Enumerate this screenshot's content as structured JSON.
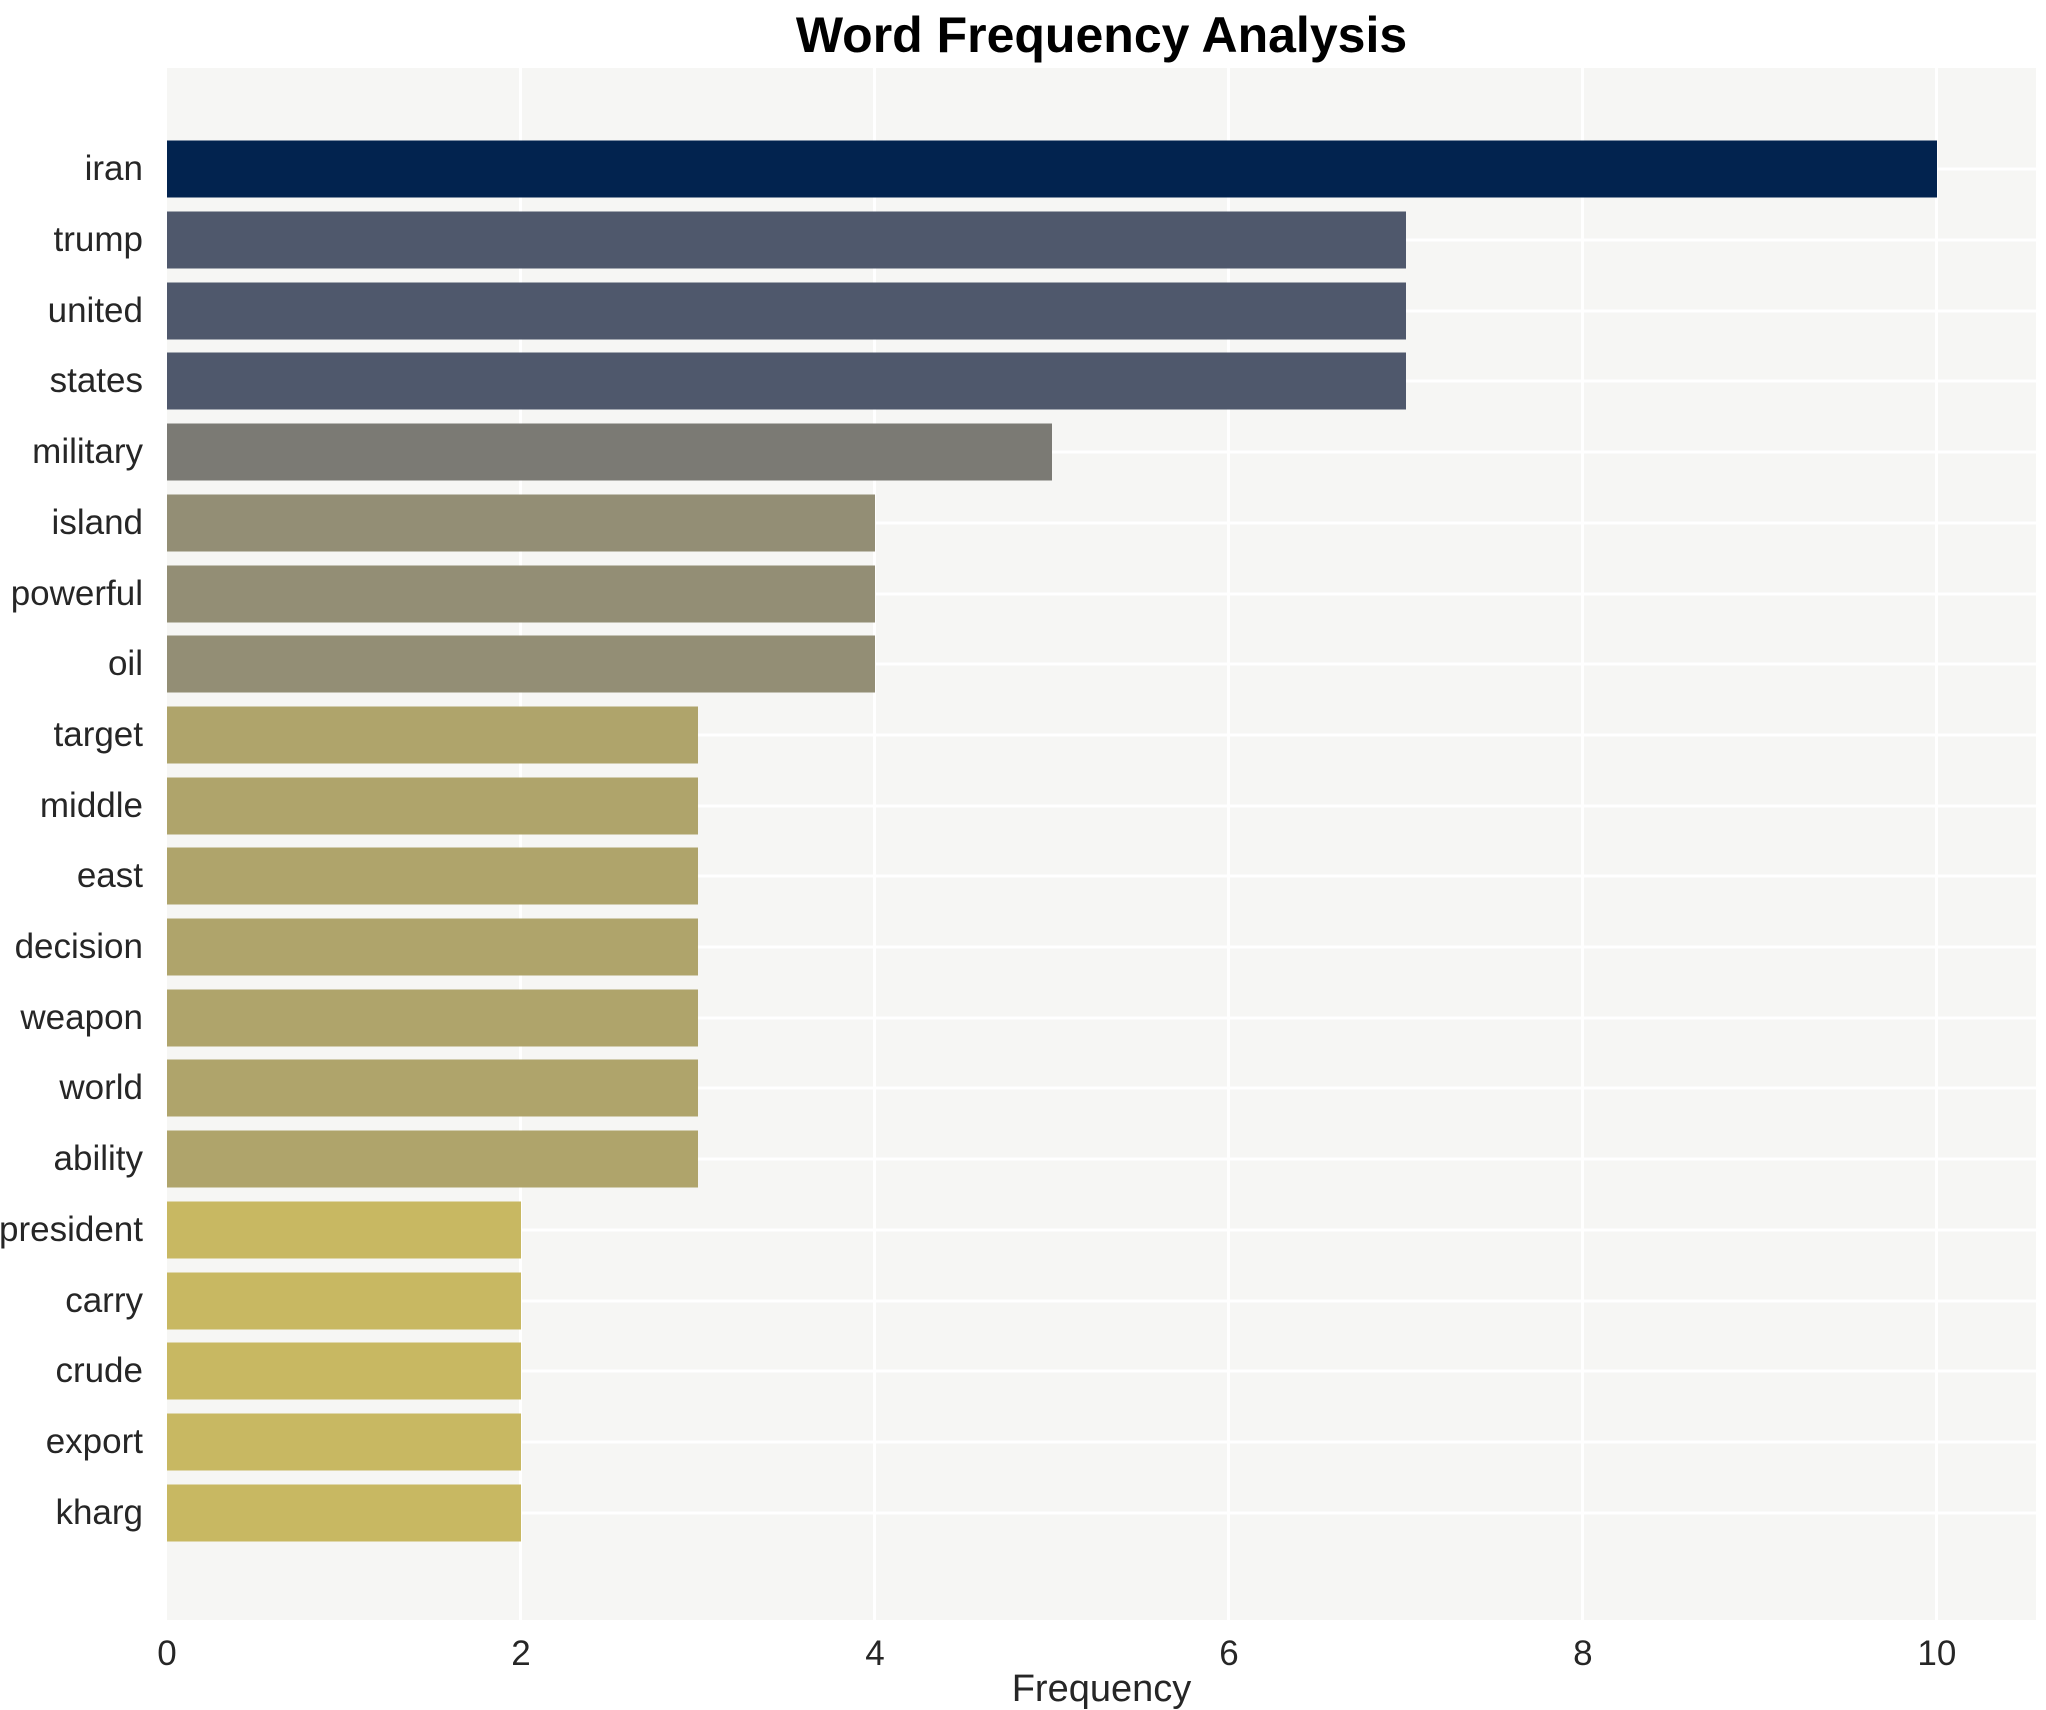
{
  "chart_data": {
    "type": "bar",
    "orientation": "horizontal",
    "title": "Word Frequency Analysis",
    "xlabel": "Frequency",
    "ylabel": "",
    "categories": [
      "iran",
      "trump",
      "united",
      "states",
      "military",
      "island",
      "powerful",
      "oil",
      "target",
      "middle",
      "east",
      "decision",
      "weapon",
      "world",
      "ability",
      "president",
      "carry",
      "crude",
      "export",
      "kharg"
    ],
    "values": [
      10,
      7,
      7,
      7,
      5,
      4,
      4,
      4,
      3,
      3,
      3,
      3,
      3,
      3,
      3,
      2,
      2,
      2,
      2,
      2
    ],
    "bar_colors": [
      "#02234f",
      "#4f586c",
      "#4f586c",
      "#4f586c",
      "#7b7a74",
      "#938e75",
      "#938e75",
      "#938e75",
      "#afa46b",
      "#afa46b",
      "#afa46b",
      "#afa46b",
      "#afa46b",
      "#afa46b",
      "#afa46b",
      "#c8b862",
      "#c8b862",
      "#c8b862",
      "#c8b862",
      "#c8b862"
    ],
    "xticks": [
      0,
      2,
      4,
      6,
      8,
      10
    ],
    "xlim": [
      0,
      10.56
    ],
    "grid": true,
    "legend": "none",
    "plot_background": "#f6f6f4",
    "grid_color": "#ffffff",
    "text_color": "#262626",
    "title_color": "#000000"
  }
}
